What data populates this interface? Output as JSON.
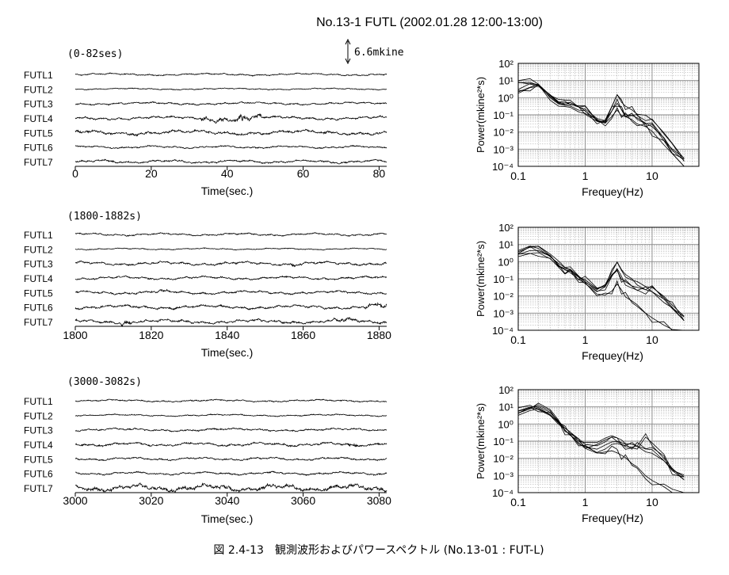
{
  "figure_title": "No.13-1 FUTL (2002.01.28 12:00-13:00)",
  "caption": "図 2.4-13　観測波形およびパワースペクトル (No.13-01 : FUT-L)",
  "scale_bar": {
    "label": "6.6mkine"
  },
  "style": {
    "trace_color": "#000000",
    "grid_color": "#888888",
    "background": "#ffffff"
  },
  "chart_data": [
    {
      "type": "line",
      "panel": "waveform",
      "window_label": "(0-82ses)",
      "xlabel": "Time(sec.)",
      "xlim": [
        0,
        82
      ],
      "xticks": [
        0,
        20,
        40,
        60,
        80
      ],
      "series": [
        {
          "name": "FUTL1",
          "amplitude": 0.35,
          "seed": 11,
          "burst": []
        },
        {
          "name": "FUTL2",
          "amplitude": 0.25,
          "seed": 12,
          "burst": []
        },
        {
          "name": "FUTL3",
          "amplitude": 0.4,
          "seed": 13,
          "burst": []
        },
        {
          "name": "FUTL4",
          "amplitude": 0.5,
          "seed": 14,
          "burst": [
            [
              33,
              49,
              2.2
            ],
            [
              43,
              45,
              4.5
            ]
          ]
        },
        {
          "name": "FUTL5",
          "amplitude": 0.7,
          "seed": 15,
          "burst": []
        },
        {
          "name": "FUTL6",
          "amplitude": 0.4,
          "seed": 16,
          "burst": []
        },
        {
          "name": "FUTL7",
          "amplitude": 0.5,
          "seed": 17,
          "burst": []
        }
      ]
    },
    {
      "type": "line",
      "panel": "waveform",
      "window_label": "(1800-1882s)",
      "xlabel": "Time(sec.)",
      "xlim": [
        1800,
        1882
      ],
      "xticks": [
        1800,
        1820,
        1840,
        1860,
        1880
      ],
      "series": [
        {
          "name": "FUTL1",
          "amplitude": 0.4,
          "seed": 21,
          "burst": []
        },
        {
          "name": "FUTL2",
          "amplitude": 0.25,
          "seed": 22,
          "burst": []
        },
        {
          "name": "FUTL3",
          "amplitude": 0.55,
          "seed": 23,
          "burst": [
            [
              1856,
              1860,
              1.5
            ]
          ]
        },
        {
          "name": "FUTL4",
          "amplitude": 0.5,
          "seed": 24,
          "burst": []
        },
        {
          "name": "FUTL5",
          "amplitude": 0.5,
          "seed": 25,
          "burst": [
            [
              1820,
              1825,
              1.4
            ]
          ]
        },
        {
          "name": "FUTL6",
          "amplitude": 0.6,
          "seed": 26,
          "burst": [
            [
              1876,
              1882,
              1.8
            ]
          ]
        },
        {
          "name": "FUTL7",
          "amplitude": 0.6,
          "seed": 27,
          "burst": [
            [
              1812,
              1815,
              2.0
            ],
            [
              1868,
              1876,
              1.6
            ]
          ]
        }
      ]
    },
    {
      "type": "line",
      "panel": "waveform",
      "window_label": "(3000-3082s)",
      "xlabel": "Time(sec.)",
      "xlim": [
        3000,
        3082
      ],
      "xticks": [
        3000,
        3020,
        3040,
        3060,
        3080
      ],
      "series": [
        {
          "name": "FUTL1",
          "amplitude": 0.35,
          "seed": 31,
          "burst": []
        },
        {
          "name": "FUTL2",
          "amplitude": 0.3,
          "seed": 32,
          "burst": []
        },
        {
          "name": "FUTL3",
          "amplitude": 0.45,
          "seed": 33,
          "burst": []
        },
        {
          "name": "FUTL4",
          "amplitude": 0.55,
          "seed": 34,
          "burst": [
            [
              3072,
              3074,
              2.5
            ]
          ]
        },
        {
          "name": "FUTL5",
          "amplitude": 0.45,
          "seed": 35,
          "burst": []
        },
        {
          "name": "FUTL6",
          "amplitude": 0.45,
          "seed": 36,
          "burst": []
        },
        {
          "name": "FUTL7",
          "amplitude": 0.8,
          "seed": 37,
          "burst": [
            [
              3003,
              3082,
              1.3
            ]
          ]
        }
      ]
    },
    {
      "type": "line",
      "panel": "spectrum",
      "xlabel": "Frequey(Hz)",
      "ylabel": "Power(mkine²*s)",
      "xscale": "log",
      "yscale": "log",
      "xlim": [
        0.1,
        50
      ],
      "ylim": [
        0.0001,
        100
      ],
      "xticks": [
        "0.1",
        "1",
        "10"
      ],
      "yticks": [
        "10²",
        "10¹",
        "10⁰",
        "10⁻¹",
        "10⁻²",
        "10⁻³",
        "10⁻⁴"
      ],
      "grid": true,
      "traces": 7,
      "x": [
        0.1,
        0.15,
        0.2,
        0.3,
        0.4,
        0.5,
        0.6,
        0.8,
        1,
        1.5,
        2,
        2.5,
        3,
        3.5,
        4,
        5,
        6,
        8,
        10,
        15,
        20,
        30
      ],
      "series": [
        {
          "values": [
            8,
            9,
            6,
            1.5,
            0.6,
            0.45,
            0.5,
            0.3,
            0.2,
            0.06,
            0.05,
            0.2,
            0.5,
            0.2,
            0.1,
            0.08,
            0.06,
            0.03,
            0.02,
            0.005,
            0.001,
            0.0002
          ]
        },
        {
          "values": [
            3,
            6,
            5,
            1.2,
            0.5,
            0.5,
            0.5,
            0.3,
            0.15,
            0.05,
            0.04,
            0.3,
            1.5,
            0.6,
            0.3,
            0.2,
            0.1,
            0.08,
            0.05,
            0.01,
            0.002,
            0.0003
          ]
        },
        {
          "values": [
            2,
            4,
            4,
            1,
            0.5,
            0.45,
            0.45,
            0.25,
            0.12,
            0.04,
            0.03,
            0.08,
            0.2,
            0.1,
            0.08,
            0.05,
            0.03,
            0.02,
            0.01,
            0.002,
            0.0006,
            0.0001
          ]
        }
      ]
    },
    {
      "type": "line",
      "panel": "spectrum",
      "xlabel": "Frequey(Hz)",
      "ylabel": "Power(mkine²*s)",
      "xscale": "log",
      "yscale": "log",
      "xlim": [
        0.1,
        50
      ],
      "ylim": [
        0.0001,
        100
      ],
      "xticks": [
        "0.1",
        "1",
        "10"
      ],
      "yticks": [
        "10²",
        "10¹",
        "10⁰",
        "10⁻¹",
        "10⁻²",
        "10⁻³",
        "10⁻⁴"
      ],
      "grid": true,
      "traces": 7,
      "x": [
        0.1,
        0.15,
        0.2,
        0.3,
        0.4,
        0.5,
        0.6,
        0.8,
        1,
        1.5,
        2,
        2.5,
        3,
        3.5,
        4,
        5,
        6,
        8,
        10,
        15,
        20,
        30
      ],
      "series": [
        {
          "values": [
            5,
            7,
            6,
            2,
            0.8,
            0.4,
            0.3,
            0.15,
            0.08,
            0.03,
            0.04,
            0.15,
            0.3,
            0.1,
            0.06,
            0.04,
            0.03,
            0.02,
            0.02,
            0.006,
            0.002,
            0.0004
          ]
        },
        {
          "values": [
            3,
            5,
            5,
            2,
            0.7,
            0.35,
            0.25,
            0.12,
            0.06,
            0.02,
            0.03,
            0.3,
            1,
            0.3,
            0.15,
            0.08,
            0.06,
            0.04,
            0.03,
            0.01,
            0.003,
            0.0006
          ]
        },
        {
          "values": [
            2,
            3,
            3.5,
            1.5,
            0.5,
            0.3,
            0.2,
            0.1,
            0.05,
            0.015,
            0.01,
            0.02,
            0.05,
            0.02,
            0.01,
            0.005,
            0.003,
            0.001,
            0.0005,
            0.0002,
            0.0001,
            0.0001
          ]
        }
      ]
    },
    {
      "type": "line",
      "panel": "spectrum",
      "xlabel": "Frequey(Hz)",
      "ylabel": "Power(mkine²*s)",
      "xscale": "log",
      "yscale": "log",
      "xlim": [
        0.1,
        50
      ],
      "ylim": [
        0.0001,
        100
      ],
      "xticks": [
        "0.1",
        "1",
        "10"
      ],
      "yticks": [
        "10²",
        "10¹",
        "10⁰",
        "10⁻¹",
        "10⁻²",
        "10⁻³",
        "10⁻⁴"
      ],
      "grid": true,
      "traces": 7,
      "x": [
        0.1,
        0.15,
        0.2,
        0.3,
        0.4,
        0.5,
        0.6,
        0.8,
        1,
        1.5,
        2,
        2.5,
        3,
        3.5,
        4,
        5,
        6,
        8,
        10,
        15,
        20,
        30
      ],
      "series": [
        {
          "values": [
            5,
            9,
            10,
            5,
            1.5,
            0.6,
            0.3,
            0.12,
            0.06,
            0.05,
            0.1,
            0.2,
            0.15,
            0.1,
            0.08,
            0.06,
            0.05,
            0.04,
            0.03,
            0.008,
            0.002,
            0.0005
          ]
        },
        {
          "values": [
            4,
            8,
            9,
            4,
            1.2,
            0.5,
            0.25,
            0.1,
            0.05,
            0.03,
            0.06,
            0.1,
            0.08,
            0.06,
            0.05,
            0.04,
            0.06,
            0.3,
            0.05,
            0.01,
            0.003,
            0.0006
          ]
        },
        {
          "values": [
            3,
            6,
            7,
            3,
            1,
            0.4,
            0.2,
            0.08,
            0.04,
            0.02,
            0.02,
            0.03,
            0.02,
            0.015,
            0.01,
            0.005,
            0.003,
            0.001,
            0.0005,
            0.0002,
            0.0001,
            0.0001
          ]
        }
      ]
    }
  ]
}
